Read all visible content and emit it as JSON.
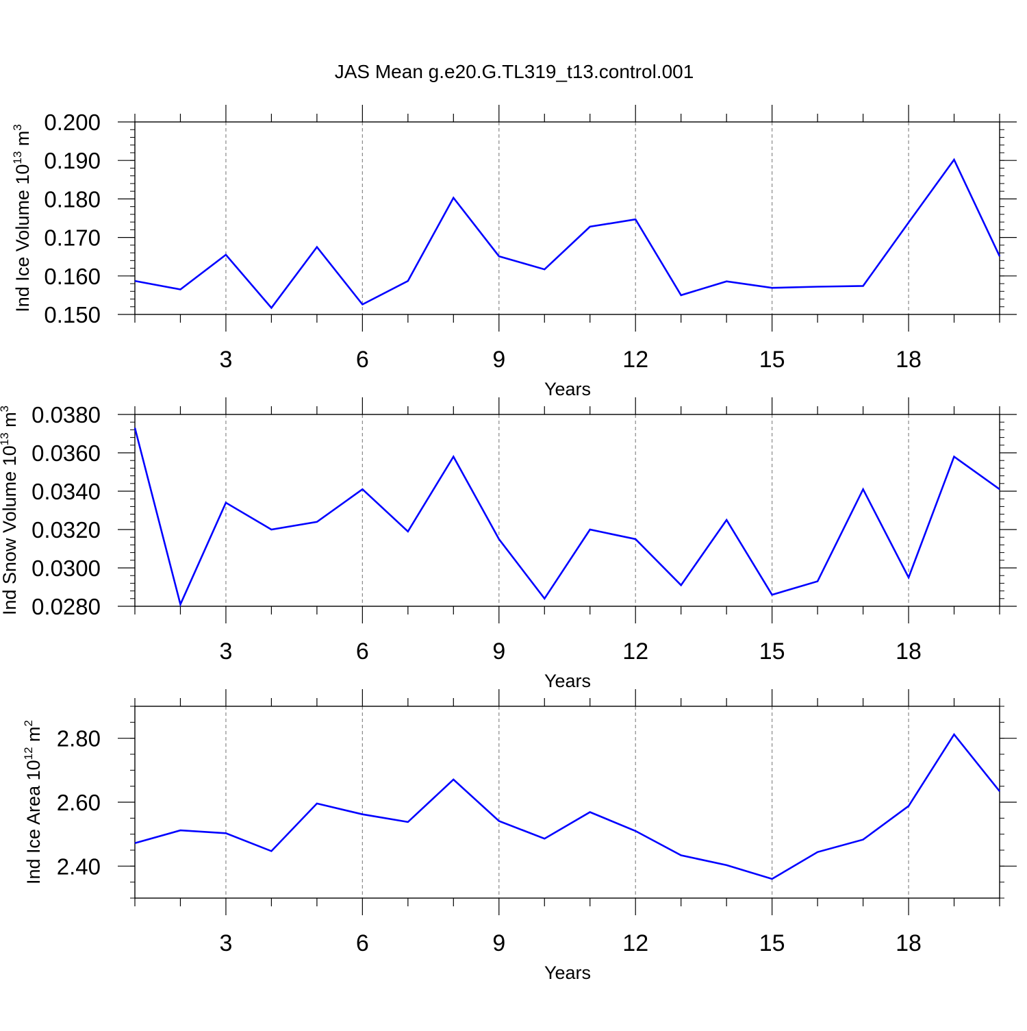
{
  "title": "JAS Mean g.e20.G.TL319_t13.control.001",
  "colors": {
    "line": "#0000ff",
    "axis": "#000000",
    "grid": "#888888"
  },
  "chart_data": [
    {
      "type": "line",
      "xlabel": "Years",
      "ylabel": {
        "main": "Ind Ice Volume 10",
        "exp": "13",
        "unit": " m",
        "unit_exp": "3"
      },
      "xlim": [
        1,
        20
      ],
      "xticks": [
        3,
        6,
        9,
        12,
        15,
        18
      ],
      "ylim": [
        0.15,
        0.2
      ],
      "yticks": [
        0.15,
        0.16,
        0.17,
        0.18,
        0.19,
        0.2
      ],
      "ytick_labels": [
        "0.150",
        "0.160",
        "0.170",
        "0.180",
        "0.190",
        "0.200"
      ],
      "yminor_step": 0.002,
      "x": [
        1,
        2,
        3,
        4,
        5,
        6,
        7,
        8,
        9,
        10,
        11,
        12,
        13,
        14,
        15,
        16,
        17,
        18,
        19,
        20
      ],
      "y": [
        0.1587,
        0.1565,
        0.1655,
        0.1517,
        0.1675,
        0.1526,
        0.1587,
        0.1803,
        0.1651,
        0.1617,
        0.1728,
        0.1747,
        0.155,
        0.1586,
        0.1569,
        0.1572,
        0.1574,
        0.1739,
        0.1902,
        0.1651
      ],
      "grid": "vertical-dashed"
    },
    {
      "type": "line",
      "xlabel": "Years",
      "ylabel": {
        "main": "Ind Snow Volume 10",
        "exp": "13",
        "unit": " m",
        "unit_exp": "3"
      },
      "xlim": [
        1,
        20
      ],
      "xticks": [
        3,
        6,
        9,
        12,
        15,
        18
      ],
      "ylim": [
        0.028,
        0.038
      ],
      "yticks": [
        0.028,
        0.03,
        0.032,
        0.034,
        0.036,
        0.038
      ],
      "ytick_labels": [
        "0.0280",
        "0.0300",
        "0.0320",
        "0.0340",
        "0.0360",
        "0.0380"
      ],
      "yminor_step": 0.0004,
      "x": [
        1,
        2,
        3,
        4,
        5,
        6,
        7,
        8,
        9,
        10,
        11,
        12,
        13,
        14,
        15,
        16,
        17,
        18,
        19,
        20
      ],
      "y": [
        0.0373,
        0.0281,
        0.0334,
        0.032,
        0.0324,
        0.0341,
        0.0319,
        0.0358,
        0.0315,
        0.0284,
        0.032,
        0.0315,
        0.0291,
        0.0325,
        0.0286,
        0.0293,
        0.0341,
        0.0295,
        0.0358,
        0.0341
      ],
      "grid": "vertical-dashed"
    },
    {
      "type": "line",
      "xlabel": "Years",
      "ylabel": {
        "main": "Ind Ice Area 10",
        "exp": "12",
        "unit": " m",
        "unit_exp": "2"
      },
      "xlim": [
        1,
        20
      ],
      "xticks": [
        3,
        6,
        9,
        12,
        15,
        18
      ],
      "ylim": [
        2.3,
        2.9
      ],
      "yticks": [
        2.4,
        2.6,
        2.8
      ],
      "ytick_labels": [
        "2.40",
        "2.60",
        "2.80"
      ],
      "yminor_step": 0.05,
      "x": [
        1,
        2,
        3,
        4,
        5,
        6,
        7,
        8,
        9,
        10,
        11,
        12,
        13,
        14,
        15,
        16,
        17,
        18,
        19,
        20
      ],
      "y": [
        2.472,
        2.512,
        2.503,
        2.447,
        2.596,
        2.562,
        2.538,
        2.671,
        2.541,
        2.486,
        2.569,
        2.51,
        2.434,
        2.403,
        2.36,
        2.444,
        2.483,
        2.588,
        2.812,
        2.634
      ],
      "grid": "vertical-dashed"
    }
  ]
}
